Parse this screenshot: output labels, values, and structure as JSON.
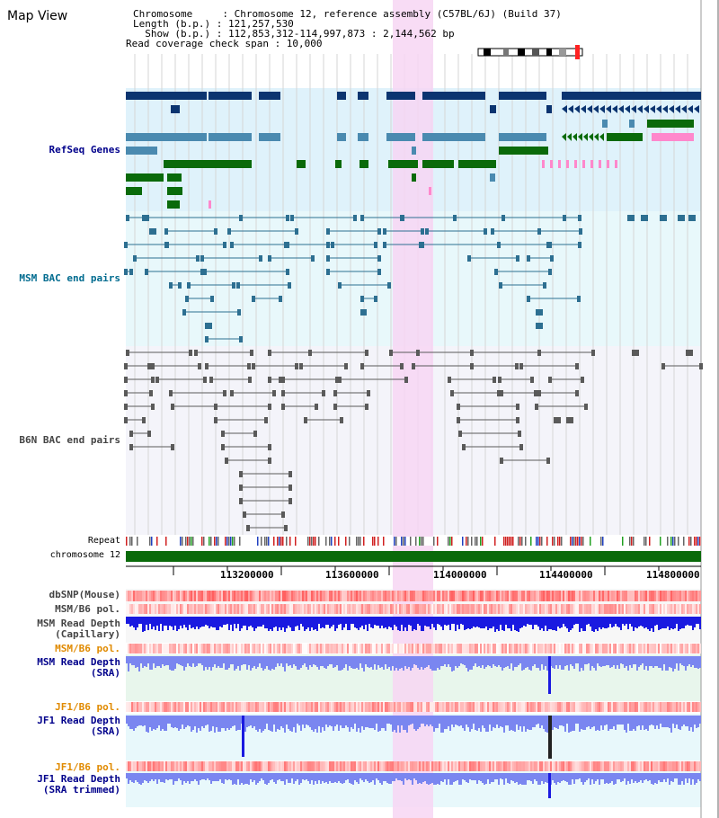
{
  "title": "Map View",
  "info": {
    "chromosome": "Chromosome     : Chromosome 12, reference assembly (C57BL/6J) (Build 37)",
    "length": "Length (b.p.) : 121,257,530",
    "show": "  Show (b.p.) : 112,853,312-114,997,873 : 2,144,562 bp",
    "coverage": "Read coverage check span : 10,000"
  },
  "tracks": {
    "refseq": "RefSeq Genes",
    "msm_bac": "MSM BAC end pairs",
    "b6n_bac": "B6N BAC end pairs",
    "repeat": "Repeat",
    "chromosome": "chromosome 12",
    "dbsnp": "dbSNP(Mouse)",
    "msm_pol1": "MSM/B6 pol.",
    "msm_depth_cap_1": "MSM Read Depth",
    "msm_depth_cap_2": "(Capillary)",
    "msm_pol2": "MSM/B6 pol.",
    "msm_depth_sra_1": "MSM Read Depth",
    "msm_depth_sra_2": "(SRA)",
    "jf1_pol1": "JF1/B6 pol.",
    "jf1_depth_1": "JF1 Read Depth",
    "jf1_depth_2": "(SRA)",
    "jf1_pol2": "JF1/B6 pol.",
    "jf1_trim_1": "JF1 Read Depth",
    "jf1_trim_2": "(SRA trimmed)"
  },
  "axis": {
    "ticks": [
      "113200000",
      "113600000",
      "114000000",
      "114400000",
      "114800000"
    ]
  },
  "colors": {
    "navy": "#0b3470",
    "steel": "#4a8ab0",
    "green": "#0a6a0a",
    "pink": "#ff88cc",
    "highlight": "#f7d6f3",
    "refseq_bg": "#dff2fb",
    "msm_bg": "#e8f8fb",
    "b6n_bg": "#f4f4fa",
    "depth_blue": "#1a1ae0",
    "sra_blue": "#7a86f0"
  }
}
